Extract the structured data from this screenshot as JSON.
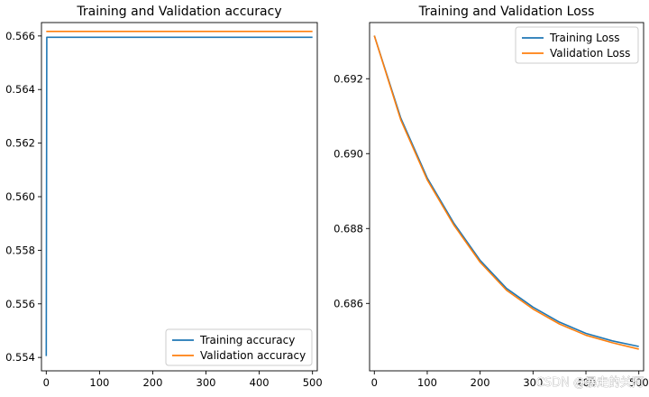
{
  "chart_data": [
    {
      "type": "line",
      "title": "Training and Validation accuracy",
      "xlabel": "",
      "ylabel": "",
      "xlim": [
        -9,
        509
      ],
      "ylim": [
        0.5535,
        0.5665
      ],
      "xticks": [
        0,
        100,
        200,
        300,
        400,
        500
      ],
      "xtick_labels": [
        "0",
        "100",
        "200",
        "300",
        "400",
        "500"
      ],
      "yticks": [
        0.554,
        0.556,
        0.558,
        0.56,
        0.562,
        0.564,
        0.566
      ],
      "ytick_labels": [
        "0.554",
        "0.556",
        "0.558",
        "0.560",
        "0.562",
        "0.564",
        "0.566"
      ],
      "legend_position": "lower-right",
      "series": [
        {
          "name": "Training accuracy",
          "color": "#1f77b4",
          "x": [
            0,
            1,
            500
          ],
          "values": [
            0.55405,
            0.56595,
            0.56595
          ]
        },
        {
          "name": "Validation accuracy",
          "color": "#ff7f0e",
          "x": [
            0,
            500
          ],
          "values": [
            0.56617,
            0.56617
          ]
        }
      ]
    },
    {
      "type": "line",
      "title": "Training and Validation Loss",
      "xlabel": "",
      "ylabel": "",
      "xlim": [
        -9,
        509
      ],
      "ylim": [
        0.6842,
        0.6935
      ],
      "xticks": [
        0,
        100,
        200,
        300,
        400,
        500
      ],
      "xtick_labels": [
        "0",
        "100",
        "200",
        "300",
        "400",
        "500"
      ],
      "yticks": [
        0.686,
        0.688,
        0.69,
        0.692
      ],
      "ytick_labels": [
        "0.686",
        "0.688",
        "0.690",
        "0.692"
      ],
      "legend_position": "upper-right",
      "series": [
        {
          "name": "Training Loss",
          "color": "#1f77b4",
          "x": [
            0,
            50,
            100,
            150,
            200,
            250,
            300,
            350,
            400,
            450,
            500
          ],
          "values": [
            0.69315,
            0.69095,
            0.68935,
            0.68815,
            0.68715,
            0.6864,
            0.6859,
            0.6855,
            0.6852,
            0.685,
            0.68485
          ]
        },
        {
          "name": "Validation Loss",
          "color": "#ff7f0e",
          "x": [
            0,
            50,
            100,
            150,
            200,
            250,
            300,
            350,
            400,
            450,
            500
          ],
          "values": [
            0.69315,
            0.6909,
            0.6893,
            0.6881,
            0.6871,
            0.68635,
            0.68585,
            0.68545,
            0.68515,
            0.68495,
            0.68478
          ]
        }
      ]
    }
  ],
  "watermark": "CSDN @暴走的关阿"
}
